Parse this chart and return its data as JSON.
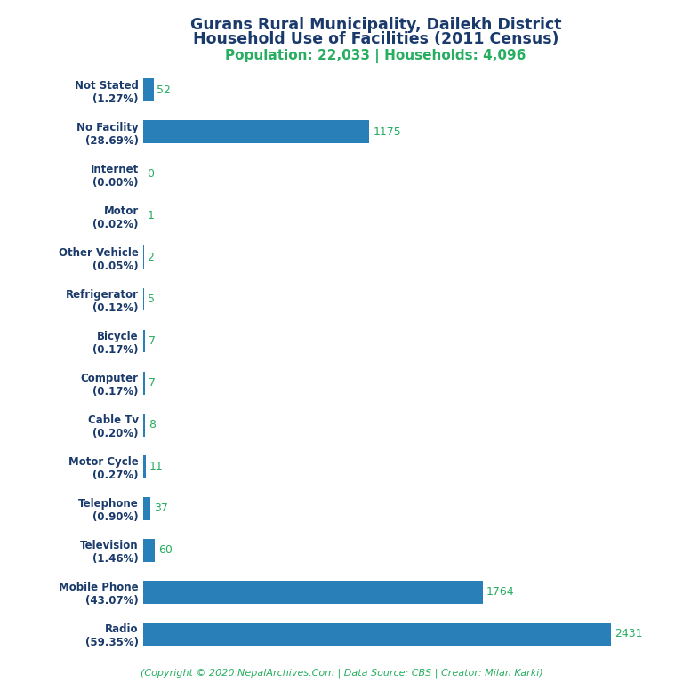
{
  "title_line1": "Gurans Rural Municipality, Dailekh District",
  "title_line2": "Household Use of Facilities (2011 Census)",
  "subtitle": "Population: 22,033 | Households: 4,096",
  "footer": "(Copyright © 2020 NepalArchives.Com | Data Source: CBS | Creator: Milan Karki)",
  "categories": [
    "Not Stated\n(1.27%)",
    "No Facility\n(28.69%)",
    "Internet\n(0.00%)",
    "Motor\n(0.02%)",
    "Other Vehicle\n(0.05%)",
    "Refrigerator\n(0.12%)",
    "Bicycle\n(0.17%)",
    "Computer\n(0.17%)",
    "Cable Tv\n(0.20%)",
    "Motor Cycle\n(0.27%)",
    "Telephone\n(0.90%)",
    "Television\n(1.46%)",
    "Mobile Phone\n(43.07%)",
    "Radio\n(59.35%)"
  ],
  "values": [
    52,
    1175,
    0,
    1,
    2,
    5,
    7,
    7,
    8,
    11,
    37,
    60,
    1764,
    2431
  ],
  "bar_color": "#2980b9",
  "title_color": "#1a3a6b",
  "subtitle_color": "#27ae60",
  "value_color": "#27ae60",
  "footer_color": "#27ae60",
  "background_color": "#ffffff",
  "xlim": [
    0,
    2700
  ]
}
